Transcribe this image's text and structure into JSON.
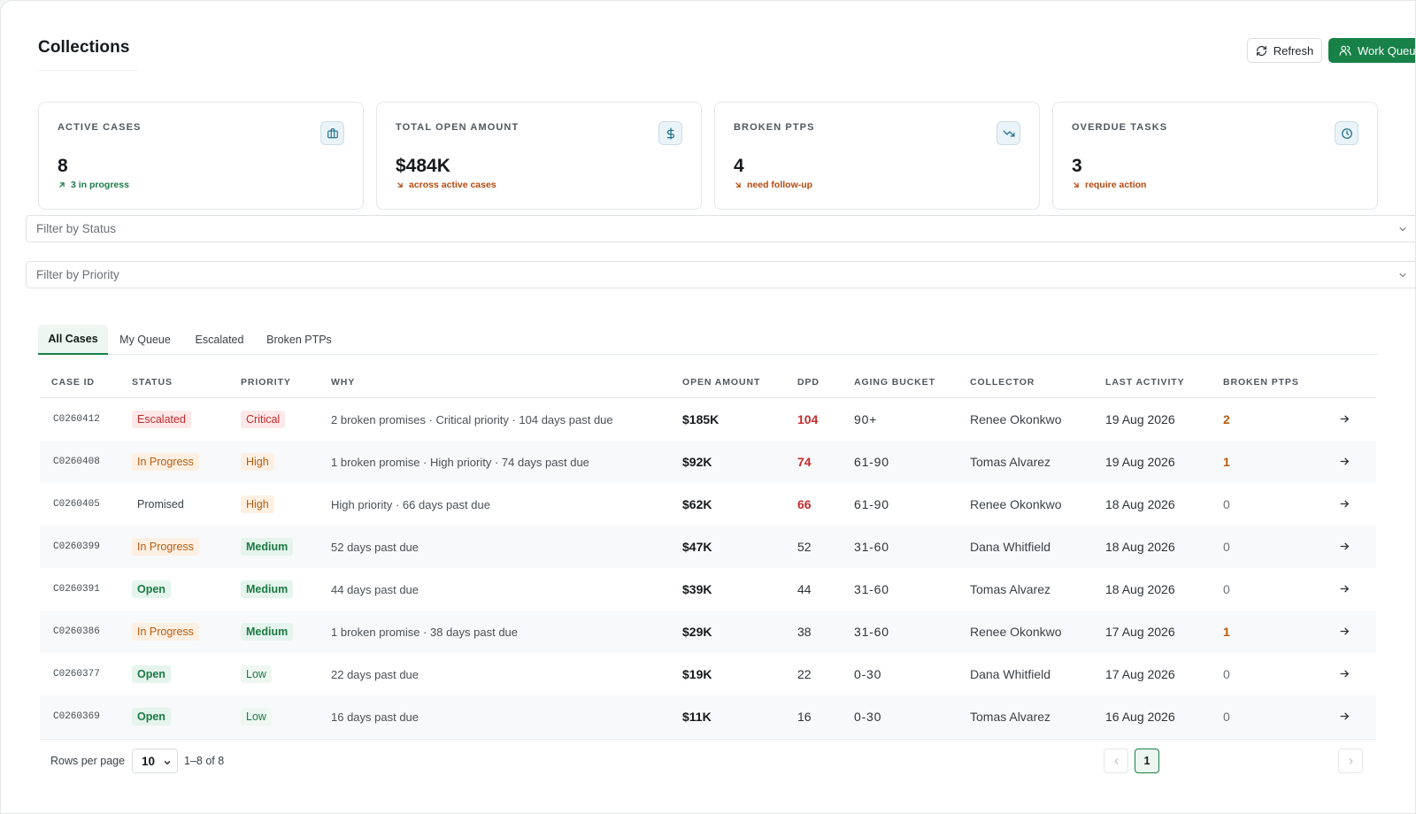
{
  "page": {
    "title": "Collections"
  },
  "toolbar": {
    "refresh_label": "Refresh",
    "work_queue_label": "Work Queue"
  },
  "colors": {
    "accent": "#178148",
    "danger": "#c42b2b",
    "warning": "#b85c10"
  },
  "stats": [
    {
      "label": "ACTIVE CASES",
      "value": "8",
      "sub": "3 in progress",
      "trend": "up",
      "icon": "briefcase-icon"
    },
    {
      "label": "TOTAL OPEN AMOUNT",
      "value": "$484K",
      "sub": "across active cases",
      "trend": "down",
      "icon": "dollar-icon"
    },
    {
      "label": "BROKEN PTPS",
      "value": "4",
      "sub": "need follow-up",
      "trend": "down",
      "icon": "trending-down-icon"
    },
    {
      "label": "OVERDUE TASKS",
      "value": "3",
      "sub": "require action",
      "trend": "down",
      "icon": "clock-icon"
    }
  ],
  "filters": {
    "status_placeholder": "Filter by Status",
    "priority_placeholder": "Filter by Priority"
  },
  "tabs": [
    {
      "label": "All Cases",
      "active": true
    },
    {
      "label": "My Queue",
      "active": false
    },
    {
      "label": "Escalated",
      "active": false
    },
    {
      "label": "Broken PTPs",
      "active": false
    }
  ],
  "table": {
    "columns": [
      "CASE ID",
      "STATUS",
      "PRIORITY",
      "WHY",
      "OPEN AMOUNT",
      "DPD",
      "AGING BUCKET",
      "COLLECTOR",
      "LAST ACTIVITY",
      "BROKEN PTPS"
    ],
    "rows": [
      {
        "case_id": "C0260412",
        "status": "Escalated",
        "priority": "Critical",
        "why": "2 broken promises · Critical priority · 104 days past due",
        "amount": "$185K",
        "dpd": "104",
        "aging": "90+",
        "collector": "Renee Okonkwo",
        "last_activity": "19 Aug 2026",
        "broken_ptps": "2"
      },
      {
        "case_id": "C0260408",
        "status": "In Progress",
        "priority": "High",
        "why": "1 broken promise · High priority · 74 days past due",
        "amount": "$92K",
        "dpd": "74",
        "aging": "61-90",
        "collector": "Tomas Alvarez",
        "last_activity": "19 Aug 2026",
        "broken_ptps": "1"
      },
      {
        "case_id": "C0260405",
        "status": "Promised",
        "priority": "High",
        "why": "High priority · 66 days past due",
        "amount": "$62K",
        "dpd": "66",
        "aging": "61-90",
        "collector": "Renee Okonkwo",
        "last_activity": "18 Aug 2026",
        "broken_ptps": "0"
      },
      {
        "case_id": "C0260399",
        "status": "In Progress",
        "priority": "Medium",
        "why": "52 days past due",
        "amount": "$47K",
        "dpd": "52",
        "aging": "31-60",
        "collector": "Dana Whitfield",
        "last_activity": "18 Aug 2026",
        "broken_ptps": "0"
      },
      {
        "case_id": "C0260391",
        "status": "Open",
        "priority": "Medium",
        "why": "44 days past due",
        "amount": "$39K",
        "dpd": "44",
        "aging": "31-60",
        "collector": "Tomas Alvarez",
        "last_activity": "18 Aug 2026",
        "broken_ptps": "0"
      },
      {
        "case_id": "C0260386",
        "status": "In Progress",
        "priority": "Medium",
        "why": "1 broken promise · 38 days past due",
        "amount": "$29K",
        "dpd": "38",
        "aging": "31-60",
        "collector": "Renee Okonkwo",
        "last_activity": "17 Aug 2026",
        "broken_ptps": "1"
      },
      {
        "case_id": "C0260377",
        "status": "Open",
        "priority": "Low",
        "why": "22 days past due",
        "amount": "$19K",
        "dpd": "22",
        "aging": "0-30",
        "collector": "Dana Whitfield",
        "last_activity": "17 Aug 2026",
        "broken_ptps": "0"
      },
      {
        "case_id": "C0260369",
        "status": "Open",
        "priority": "Low",
        "why": "16 days past due",
        "amount": "$11K",
        "dpd": "16",
        "aging": "0-30",
        "collector": "Tomas Alvarez",
        "last_activity": "16 Aug 2026",
        "broken_ptps": "0"
      }
    ]
  },
  "pagination": {
    "rows_per_page_label": "Rows per page",
    "rows_per_page": "10",
    "range": "1–8 of 8",
    "current_page": "1"
  }
}
